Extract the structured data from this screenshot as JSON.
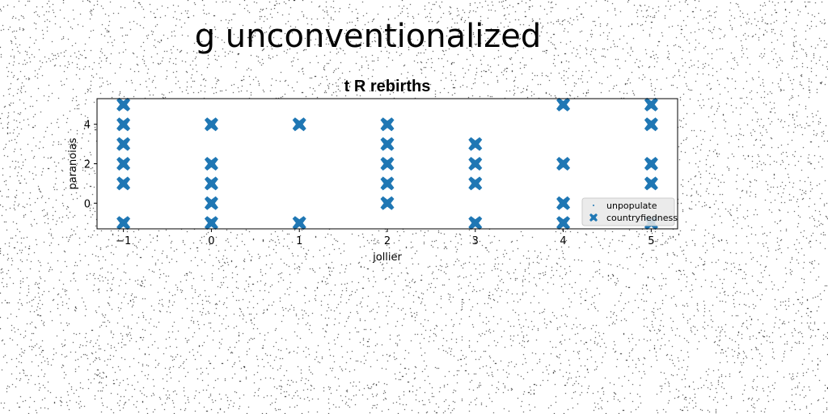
{
  "figure": {
    "suptitle": "g unconventionalized"
  },
  "colors": {
    "marker": "#1f77b4",
    "background": "#ffffff",
    "legend_bg": "#e8e8e8"
  },
  "chart_data": {
    "type": "scatter",
    "title": "t R rebirths",
    "xlabel": "jollier",
    "ylabel": "paranoias",
    "xlim": [
      -1.3,
      5.3
    ],
    "ylim": [
      -1.3,
      5.3
    ],
    "xticks": [
      -1,
      0,
      1,
      2,
      3,
      4,
      5
    ],
    "xtick_labels": [
      "−1",
      "0",
      "1",
      "2",
      "3",
      "4",
      "5"
    ],
    "yticks": [
      0,
      2,
      4
    ],
    "ytick_labels": [
      "0",
      "2",
      "4"
    ],
    "grid": false,
    "legend_location": "lower right",
    "series": [
      {
        "name": "unpopulate",
        "marker": "point",
        "points": []
      },
      {
        "name": "countryfiedness",
        "marker": "X",
        "points": [
          [
            -1,
            5
          ],
          [
            -1,
            4
          ],
          [
            -1,
            3
          ],
          [
            -1,
            2
          ],
          [
            -1,
            1
          ],
          [
            -1,
            -1
          ],
          [
            0,
            4
          ],
          [
            0,
            2
          ],
          [
            0,
            1
          ],
          [
            0,
            0
          ],
          [
            0,
            -1
          ],
          [
            1,
            4
          ],
          [
            1,
            -1
          ],
          [
            2,
            4
          ],
          [
            2,
            3
          ],
          [
            2,
            2
          ],
          [
            2,
            1
          ],
          [
            2,
            0
          ],
          [
            3,
            3
          ],
          [
            3,
            2
          ],
          [
            3,
            1
          ],
          [
            3,
            -1
          ],
          [
            4,
            5
          ],
          [
            4,
            2
          ],
          [
            4,
            0
          ],
          [
            4,
            -1
          ],
          [
            5,
            5
          ],
          [
            5,
            4
          ],
          [
            5,
            2
          ],
          [
            5,
            1
          ],
          [
            5,
            -1
          ]
        ]
      }
    ]
  }
}
